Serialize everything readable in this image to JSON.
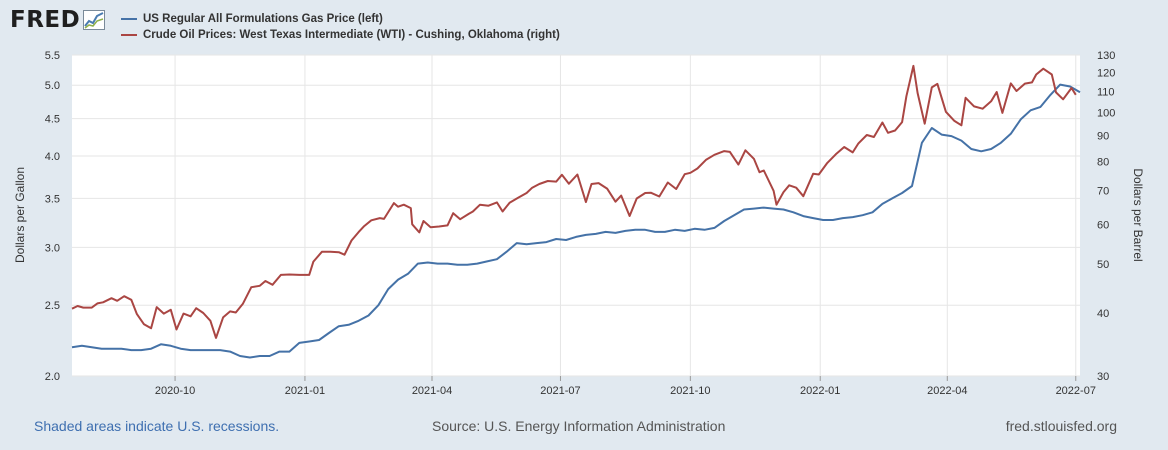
{
  "header": {
    "logo_text": "FRED"
  },
  "legend": [
    {
      "label": "US Regular All Formulations Gas Price (left)",
      "color": "#4572a7"
    },
    {
      "label": "Crude Oil Prices: West Texas Intermediate (WTI) - Cushing, Oklahoma (right)",
      "color": "#aa4643"
    }
  ],
  "footer": {
    "recession_note": "Shaded areas indicate U.S. recessions.",
    "source": "Source: U.S. Energy Information Administration",
    "site": "fred.stlouisfed.org"
  },
  "chart_data": {
    "type": "line",
    "x_ticks": [
      "2020-10",
      "2021-01",
      "2021-04",
      "2021-07",
      "2021-10",
      "2022-01",
      "2022-04",
      "2022-07"
    ],
    "x_range": [
      "2020-07-20",
      "2022-07-04"
    ],
    "left_axis": {
      "label": "Dollars per Gallon",
      "scale": "log",
      "range": [
        2.0,
        5.5
      ],
      "ticks": [
        2.0,
        2.5,
        3.0,
        3.5,
        4.0,
        4.5,
        5.0,
        5.5
      ]
    },
    "right_axis": {
      "label": "Dollars per Barrel",
      "scale": "log",
      "range": [
        30,
        130
      ],
      "ticks": [
        30,
        40,
        50,
        60,
        70,
        80,
        90,
        100,
        110,
        120,
        130
      ]
    },
    "grid": true,
    "series": [
      {
        "name": "US Regular All Formulations Gas Price (left)",
        "axis": "left",
        "color": "#4572a7",
        "points": [
          [
            "2020-07-20",
            2.19
          ],
          [
            "2020-07-27",
            2.2
          ],
          [
            "2020-08-03",
            2.19
          ],
          [
            "2020-08-10",
            2.18
          ],
          [
            "2020-08-17",
            2.18
          ],
          [
            "2020-08-24",
            2.18
          ],
          [
            "2020-08-31",
            2.17
          ],
          [
            "2020-09-07",
            2.17
          ],
          [
            "2020-09-14",
            2.18
          ],
          [
            "2020-09-21",
            2.21
          ],
          [
            "2020-09-28",
            2.2
          ],
          [
            "2020-10-05",
            2.18
          ],
          [
            "2020-10-12",
            2.17
          ],
          [
            "2020-10-19",
            2.17
          ],
          [
            "2020-10-26",
            2.17
          ],
          [
            "2020-11-02",
            2.17
          ],
          [
            "2020-11-09",
            2.16
          ],
          [
            "2020-11-16",
            2.13
          ],
          [
            "2020-11-23",
            2.12
          ],
          [
            "2020-11-30",
            2.13
          ],
          [
            "2020-12-07",
            2.13
          ],
          [
            "2020-12-14",
            2.16
          ],
          [
            "2020-12-21",
            2.16
          ],
          [
            "2020-12-28",
            2.22
          ],
          [
            "2021-01-04",
            2.23
          ],
          [
            "2021-01-11",
            2.24
          ],
          [
            "2021-01-18",
            2.29
          ],
          [
            "2021-01-25",
            2.34
          ],
          [
            "2021-02-01",
            2.35
          ],
          [
            "2021-02-08",
            2.38
          ],
          [
            "2021-02-15",
            2.42
          ],
          [
            "2021-02-22",
            2.5
          ],
          [
            "2021-03-01",
            2.63
          ],
          [
            "2021-03-08",
            2.71
          ],
          [
            "2021-03-15",
            2.76
          ],
          [
            "2021-03-22",
            2.85
          ],
          [
            "2021-03-29",
            2.86
          ],
          [
            "2021-04-05",
            2.85
          ],
          [
            "2021-04-12",
            2.85
          ],
          [
            "2021-04-19",
            2.84
          ],
          [
            "2021-04-26",
            2.84
          ],
          [
            "2021-05-03",
            2.85
          ],
          [
            "2021-05-10",
            2.87
          ],
          [
            "2021-05-17",
            2.89
          ],
          [
            "2021-05-24",
            2.96
          ],
          [
            "2021-05-31",
            3.04
          ],
          [
            "2021-06-07",
            3.03
          ],
          [
            "2021-06-14",
            3.04
          ],
          [
            "2021-06-21",
            3.05
          ],
          [
            "2021-06-28",
            3.08
          ],
          [
            "2021-07-05",
            3.07
          ],
          [
            "2021-07-12",
            3.1
          ],
          [
            "2021-07-19",
            3.12
          ],
          [
            "2021-07-26",
            3.13
          ],
          [
            "2021-08-02",
            3.15
          ],
          [
            "2021-08-09",
            3.14
          ],
          [
            "2021-08-16",
            3.16
          ],
          [
            "2021-08-23",
            3.17
          ],
          [
            "2021-08-30",
            3.17
          ],
          [
            "2021-09-06",
            3.15
          ],
          [
            "2021-09-13",
            3.15
          ],
          [
            "2021-09-20",
            3.17
          ],
          [
            "2021-09-27",
            3.16
          ],
          [
            "2021-10-04",
            3.18
          ],
          [
            "2021-10-11",
            3.17
          ],
          [
            "2021-10-18",
            3.19
          ],
          [
            "2021-10-25",
            3.26
          ],
          [
            "2021-11-01",
            3.32
          ],
          [
            "2021-11-08",
            3.38
          ],
          [
            "2021-11-15",
            3.39
          ],
          [
            "2021-11-22",
            3.4
          ],
          [
            "2021-11-29",
            3.39
          ],
          [
            "2021-12-06",
            3.38
          ],
          [
            "2021-12-13",
            3.35
          ],
          [
            "2021-12-20",
            3.31
          ],
          [
            "2021-12-27",
            3.29
          ],
          [
            "2022-01-03",
            3.27
          ],
          [
            "2022-01-10",
            3.27
          ],
          [
            "2022-01-17",
            3.29
          ],
          [
            "2022-01-24",
            3.3
          ],
          [
            "2022-01-31",
            3.32
          ],
          [
            "2022-02-07",
            3.35
          ],
          [
            "2022-02-14",
            3.44
          ],
          [
            "2022-02-21",
            3.5
          ],
          [
            "2022-02-28",
            3.56
          ],
          [
            "2022-03-07",
            3.64
          ],
          [
            "2022-03-14",
            4.17
          ],
          [
            "2022-03-21",
            4.37
          ],
          [
            "2022-03-28",
            4.28
          ],
          [
            "2022-04-04",
            4.26
          ],
          [
            "2022-04-11",
            4.2
          ],
          [
            "2022-04-18",
            4.09
          ],
          [
            "2022-04-25",
            4.06
          ],
          [
            "2022-05-02",
            4.09
          ],
          [
            "2022-05-09",
            4.17
          ],
          [
            "2022-05-16",
            4.29
          ],
          [
            "2022-05-23",
            4.49
          ],
          [
            "2022-05-30",
            4.62
          ],
          [
            "2022-06-06",
            4.67
          ],
          [
            "2022-06-13",
            4.85
          ],
          [
            "2022-06-20",
            5.01
          ],
          [
            "2022-06-27",
            4.98
          ],
          [
            "2022-07-04",
            4.89
          ]
        ]
      },
      {
        "name": "Crude Oil Prices: West Texas Intermediate (WTI) - Cushing, Oklahoma (right)",
        "axis": "right",
        "color": "#aa4643",
        "points": [
          [
            "2020-07-20",
            40.8
          ],
          [
            "2020-07-24",
            41.3
          ],
          [
            "2020-07-28",
            41.0
          ],
          [
            "2020-08-03",
            41.0
          ],
          [
            "2020-08-07",
            41.8
          ],
          [
            "2020-08-11",
            42.0
          ],
          [
            "2020-08-17",
            42.8
          ],
          [
            "2020-08-21",
            42.3
          ],
          [
            "2020-08-26",
            43.2
          ],
          [
            "2020-08-31",
            42.5
          ],
          [
            "2020-09-04",
            39.8
          ],
          [
            "2020-09-09",
            38.0
          ],
          [
            "2020-09-14",
            37.3
          ],
          [
            "2020-09-18",
            41.1
          ],
          [
            "2020-09-23",
            39.9
          ],
          [
            "2020-09-28",
            40.6
          ],
          [
            "2020-10-02",
            37.1
          ],
          [
            "2020-10-07",
            39.9
          ],
          [
            "2020-10-12",
            39.4
          ],
          [
            "2020-10-16",
            40.9
          ],
          [
            "2020-10-21",
            40.0
          ],
          [
            "2020-10-26",
            38.6
          ],
          [
            "2020-10-30",
            35.7
          ],
          [
            "2020-11-04",
            39.2
          ],
          [
            "2020-11-09",
            40.3
          ],
          [
            "2020-11-13",
            40.1
          ],
          [
            "2020-11-18",
            41.7
          ],
          [
            "2020-11-24",
            45.0
          ],
          [
            "2020-11-30",
            45.3
          ],
          [
            "2020-12-04",
            46.3
          ],
          [
            "2020-12-09",
            45.5
          ],
          [
            "2020-12-15",
            47.6
          ],
          [
            "2020-12-21",
            47.7
          ],
          [
            "2020-12-28",
            47.6
          ],
          [
            "2021-01-04",
            47.6
          ],
          [
            "2021-01-07",
            50.6
          ],
          [
            "2021-01-13",
            52.9
          ],
          [
            "2021-01-19",
            52.9
          ],
          [
            "2021-01-25",
            52.8
          ],
          [
            "2021-01-29",
            52.2
          ],
          [
            "2021-02-03",
            55.7
          ],
          [
            "2021-02-08",
            57.9
          ],
          [
            "2021-02-12",
            59.5
          ],
          [
            "2021-02-17",
            61.1
          ],
          [
            "2021-02-23",
            61.7
          ],
          [
            "2021-02-26",
            61.5
          ],
          [
            "2021-03-05",
            66.1
          ],
          [
            "2021-03-08",
            65.0
          ],
          [
            "2021-03-12",
            65.6
          ],
          [
            "2021-03-17",
            64.6
          ],
          [
            "2021-03-18",
            60.0
          ],
          [
            "2021-03-23",
            57.8
          ],
          [
            "2021-03-26",
            60.9
          ],
          [
            "2021-03-31",
            59.2
          ],
          [
            "2021-04-06",
            59.4
          ],
          [
            "2021-04-12",
            59.7
          ],
          [
            "2021-04-16",
            63.1
          ],
          [
            "2021-04-21",
            61.4
          ],
          [
            "2021-04-27",
            62.9
          ],
          [
            "2021-04-30",
            63.6
          ],
          [
            "2021-05-05",
            65.6
          ],
          [
            "2021-05-11",
            65.3
          ],
          [
            "2021-05-17",
            66.3
          ],
          [
            "2021-05-21",
            63.6
          ],
          [
            "2021-05-26",
            66.2
          ],
          [
            "2021-06-01",
            67.7
          ],
          [
            "2021-06-07",
            69.2
          ],
          [
            "2021-06-11",
            70.9
          ],
          [
            "2021-06-16",
            72.1
          ],
          [
            "2021-06-22",
            73.1
          ],
          [
            "2021-06-28",
            72.9
          ],
          [
            "2021-07-02",
            75.2
          ],
          [
            "2021-07-07",
            72.2
          ],
          [
            "2021-07-13",
            75.3
          ],
          [
            "2021-07-19",
            66.4
          ],
          [
            "2021-07-23",
            72.1
          ],
          [
            "2021-07-28",
            72.4
          ],
          [
            "2021-08-03",
            70.6
          ],
          [
            "2021-08-09",
            66.5
          ],
          [
            "2021-08-13",
            68.4
          ],
          [
            "2021-08-19",
            62.3
          ],
          [
            "2021-08-24",
            67.5
          ],
          [
            "2021-08-30",
            69.2
          ],
          [
            "2021-09-03",
            69.3
          ],
          [
            "2021-09-09",
            68.1
          ],
          [
            "2021-09-15",
            72.6
          ],
          [
            "2021-09-21",
            70.5
          ],
          [
            "2021-09-27",
            75.4
          ],
          [
            "2021-10-01",
            75.9
          ],
          [
            "2021-10-06",
            77.4
          ],
          [
            "2021-10-12",
            80.5
          ],
          [
            "2021-10-18",
            82.4
          ],
          [
            "2021-10-25",
            83.8
          ],
          [
            "2021-10-29",
            83.5
          ],
          [
            "2021-11-04",
            78.8
          ],
          [
            "2021-11-09",
            84.1
          ],
          [
            "2021-11-15",
            80.9
          ],
          [
            "2021-11-19",
            76.1
          ],
          [
            "2021-11-22",
            76.7
          ],
          [
            "2021-11-29",
            69.9
          ],
          [
            "2021-12-01",
            65.6
          ],
          [
            "2021-12-06",
            69.5
          ],
          [
            "2021-12-10",
            71.7
          ],
          [
            "2021-12-15",
            70.9
          ],
          [
            "2021-12-20",
            68.2
          ],
          [
            "2021-12-27",
            75.6
          ],
          [
            "2021-12-31",
            75.3
          ],
          [
            "2022-01-06",
            79.4
          ],
          [
            "2022-01-12",
            82.6
          ],
          [
            "2022-01-18",
            85.4
          ],
          [
            "2022-01-24",
            83.3
          ],
          [
            "2022-01-28",
            86.8
          ],
          [
            "2022-02-03",
            90.2
          ],
          [
            "2022-02-08",
            89.4
          ],
          [
            "2022-02-14",
            95.5
          ],
          [
            "2022-02-18",
            91.1
          ],
          [
            "2022-02-23",
            92.1
          ],
          [
            "2022-02-28",
            95.7
          ],
          [
            "2022-03-03",
            107.7
          ],
          [
            "2022-03-08",
            123.7
          ],
          [
            "2022-03-11",
            109.3
          ],
          [
            "2022-03-16",
            95.0
          ],
          [
            "2022-03-21",
            112.1
          ],
          [
            "2022-03-25",
            113.9
          ],
          [
            "2022-03-31",
            100.3
          ],
          [
            "2022-04-06",
            96.2
          ],
          [
            "2022-04-11",
            94.3
          ],
          [
            "2022-04-14",
            106.9
          ],
          [
            "2022-04-20",
            102.8
          ],
          [
            "2022-04-26",
            101.7
          ],
          [
            "2022-05-02",
            105.2
          ],
          [
            "2022-05-06",
            109.8
          ],
          [
            "2022-05-10",
            99.8
          ],
          [
            "2022-05-16",
            114.2
          ],
          [
            "2022-05-20",
            110.3
          ],
          [
            "2022-05-26",
            114.1
          ],
          [
            "2022-05-31",
            114.7
          ],
          [
            "2022-06-03",
            118.9
          ],
          [
            "2022-06-08",
            122.1
          ],
          [
            "2022-06-14",
            118.9
          ],
          [
            "2022-06-17",
            109.6
          ],
          [
            "2022-06-22",
            106.2
          ],
          [
            "2022-06-28",
            111.8
          ],
          [
            "2022-07-01",
            108.4
          ]
        ]
      }
    ]
  }
}
